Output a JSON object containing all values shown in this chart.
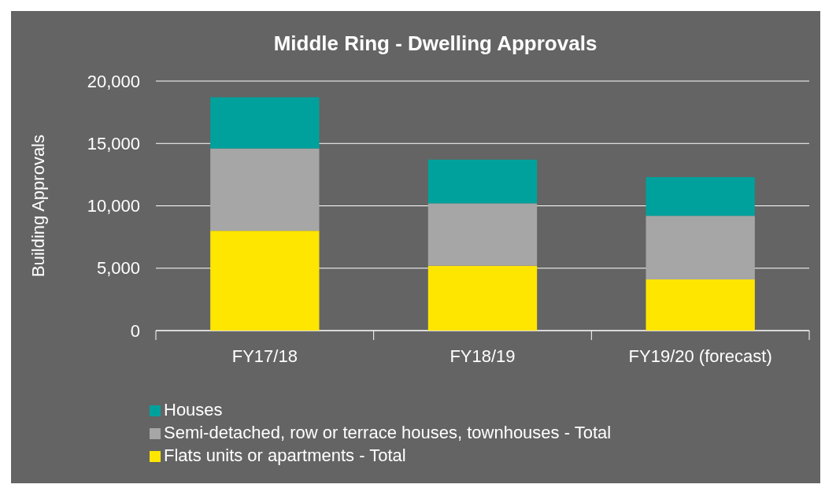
{
  "chart_data": {
    "type": "bar",
    "title": "Middle Ring - Dwelling Approvals",
    "ylabel": "Building Approvals",
    "categories": [
      "FY17/18",
      "FY18/19",
      "FY19/20 (forecast)"
    ],
    "stacked": true,
    "series": [
      {
        "name": "Flats units or apartments - Total",
        "color": "#ffe600",
        "values": [
          8000,
          5200,
          4100
        ]
      },
      {
        "name": "Semi-detached, row or terrace houses, townhouses - Total",
        "color": "#a6a6a6",
        "values": [
          6600,
          5000,
          5100
        ]
      },
      {
        "name": "Houses",
        "color": "#00a19c",
        "values": [
          4100,
          3500,
          3100
        ]
      }
    ],
    "ylim": [
      0,
      20000
    ],
    "yticks": [
      {
        "value": 0,
        "label": "0"
      },
      {
        "value": 5000,
        "label": "5,000"
      },
      {
        "value": 10000,
        "label": "10,000"
      },
      {
        "value": 15000,
        "label": "15,000"
      },
      {
        "value": 20000,
        "label": "20,000"
      }
    ],
    "grid": "y",
    "legend": "bottom"
  }
}
